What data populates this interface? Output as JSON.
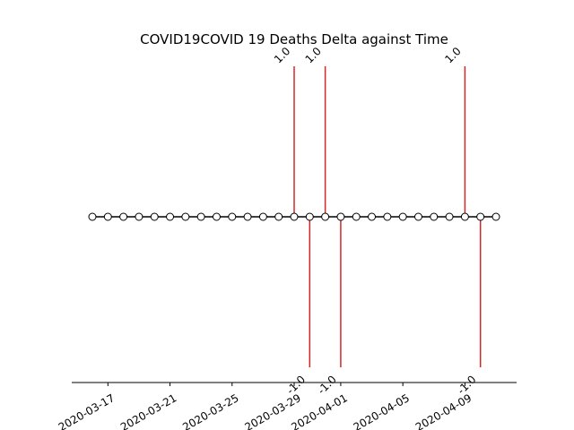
{
  "chart_data": {
    "type": "line",
    "title": "COVID19COVID 19 Deaths Delta against Time",
    "xlabel": "",
    "ylabel": "",
    "x_dates": [
      "2020-03-16",
      "2020-03-17",
      "2020-03-18",
      "2020-03-19",
      "2020-03-20",
      "2020-03-21",
      "2020-03-22",
      "2020-03-23",
      "2020-03-24",
      "2020-03-25",
      "2020-03-26",
      "2020-03-27",
      "2020-03-28",
      "2020-03-29",
      "2020-03-30",
      "2020-03-31",
      "2020-04-01",
      "2020-04-02",
      "2020-04-03",
      "2020-04-04",
      "2020-04-05",
      "2020-04-06",
      "2020-04-07",
      "2020-04-08",
      "2020-04-09",
      "2020-04-10",
      "2020-04-11"
    ],
    "series": [
      {
        "values": [
          0,
          0,
          0,
          0,
          0,
          0,
          0,
          0,
          0,
          0,
          0,
          0,
          0,
          0,
          0,
          0,
          0,
          0,
          0,
          0,
          0,
          0,
          0,
          0,
          0,
          0,
          0
        ]
      }
    ],
    "events": [
      {
        "date": "2020-03-29",
        "delta": 1.0,
        "label": "1.0"
      },
      {
        "date": "2020-03-30",
        "delta": -1.0,
        "label": "-1.0"
      },
      {
        "date": "2020-03-31",
        "delta": 1.0,
        "label": "1.0"
      },
      {
        "date": "2020-04-01",
        "delta": -1.0,
        "label": "-1.0"
      },
      {
        "date": "2020-04-09",
        "delta": 1.0,
        "label": "1.0"
      },
      {
        "date": "2020-04-10",
        "delta": -1.0,
        "label": "-1.0"
      }
    ],
    "x_ticks": [
      "2020-03-17",
      "2020-03-21",
      "2020-03-25",
      "2020-03-29",
      "2020-04-01",
      "2020-04-05",
      "2020-04-09"
    ],
    "x_range": [
      "2020-03-14",
      "2020-04-12"
    ],
    "ylim": [
      -1.07,
      1.07
    ],
    "grid": false,
    "colors": {
      "stem": "#d62728",
      "baseline": "#000000",
      "marker_fill": "#ffffff",
      "marker_edge": "#000000"
    }
  }
}
